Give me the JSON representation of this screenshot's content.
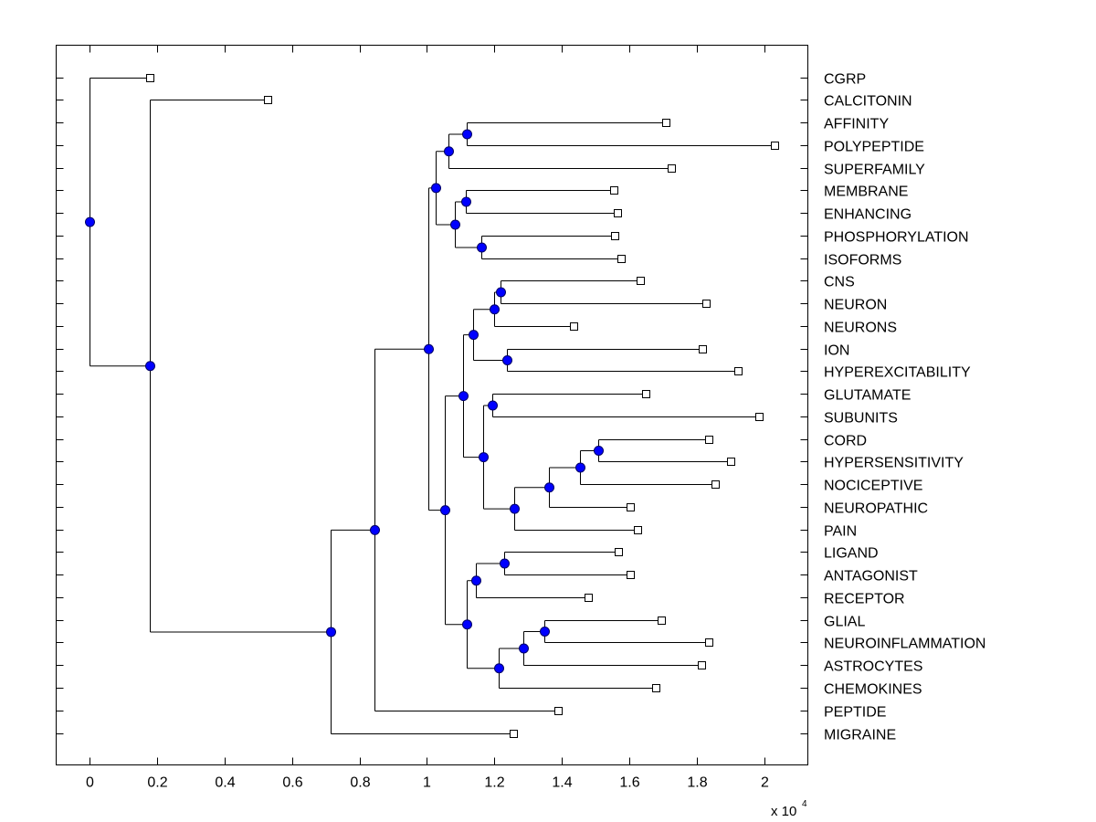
{
  "chart_data": {
    "type": "dendrogram",
    "title": "",
    "xlabel": "",
    "ylabel": "",
    "x_multiplier_label": "x 10",
    "x_multiplier_exponent": "4",
    "xlim": [
      -0.1,
      2.13
    ],
    "xticks": [
      0,
      0.2,
      0.4,
      0.6,
      0.8,
      1,
      1.2,
      1.4,
      1.6,
      1.8,
      2
    ],
    "xtick_labels": [
      "0",
      "0.2",
      "0.4",
      "0.6",
      "0.8",
      "1",
      "1.2",
      "1.4",
      "1.6",
      "1.8",
      "2"
    ],
    "grid": false,
    "leaf_order": [
      "CGRP",
      "CALCITONIN",
      "AFFINITY",
      "POLYPEPTIDE",
      "SUPERFAMILY",
      "MEMBRANE",
      "ENHANCING",
      "PHOSPHORYLATION",
      "ISOFORMS",
      "CNS",
      "NEURON",
      "NEURONS",
      "ION",
      "HYPEREXCITABILITY",
      "GLUTAMATE",
      "SUBUNITS",
      "CORD",
      "HYPERSENSITIVITY",
      "NOCICEPTIVE",
      "NEUROPATHIC",
      "PAIN",
      "LIGAND",
      "ANTAGONIST",
      "RECEPTOR",
      "GLIAL",
      "NEUROINFLAMMATION",
      "ASTROCYTES",
      "CHEMOKINES",
      "PEPTIDE",
      "MIGRAINE"
    ],
    "leaf_values": {
      "CGRP": 0.179,
      "CALCITONIN": 0.528,
      "AFFINITY": 1.71,
      "POLYPEPTIDE": 2.03,
      "SUPERFAMILY": 1.726,
      "MEMBRANE": 1.553,
      "ENHANCING": 1.566,
      "PHOSPHORYLATION": 1.556,
      "ISOFORMS": 1.575,
      "CNS": 1.634,
      "NEURON": 1.829,
      "NEURONS": 1.434,
      "ION": 1.818,
      "HYPEREXCITABILITY": 1.924,
      "GLUTAMATE": 1.648,
      "SUBUNITS": 1.986,
      "CORD": 1.837,
      "HYPERSENSITIVITY": 1.9,
      "NOCICEPTIVE": 1.854,
      "NEUROPATHIC": 1.602,
      "PAIN": 1.626,
      "LIGAND": 1.569,
      "ANTAGONIST": 1.604,
      "RECEPTOR": 1.477,
      "GLIAL": 1.696,
      "NEUROINFLAMMATION": 1.837,
      "ASTROCYTES": 1.813,
      "CHEMOKINES": 1.68,
      "PEPTIDE": 1.39,
      "MIGRAINE": 1.257
    },
    "tree": {
      "value": 0.0,
      "children": [
        "CGRP",
        {
          "value": 0.179,
          "children": [
            "CALCITONIN",
            {
              "value": 0.715,
              "children": [
                {
                  "value": 0.843,
                  "children": [
                    {
                      "value": 1.005,
                      "children": [
                        {
                          "value": 1.027,
                          "children": [
                            {
                              "value": 1.065,
                              "children": [
                                {
                                  "value": 1.119,
                                  "children": [
                                    "AFFINITY",
                                    "POLYPEPTIDE"
                                  ]
                                },
                                "SUPERFAMILY"
                              ]
                            },
                            {
                              "value": 1.084,
                              "children": [
                                {
                                  "value": 1.114,
                                  "children": [
                                    "MEMBRANE",
                                    "ENHANCING"
                                  ]
                                },
                                {
                                  "value": 1.16,
                                  "children": [
                                    "PHOSPHORYLATION",
                                    "ISOFORMS"
                                  ]
                                }
                              ]
                            }
                          ]
                        },
                        {
                          "value": 1.054,
                          "children": [
                            {
                              "value": 1.106,
                              "children": [
                                {
                                  "value": 1.138,
                                  "children": [
                                    {
                                      "value": 1.198,
                                      "children": [
                                        {
                                          "value": 1.217,
                                          "children": [
                                            "CNS",
                                            "NEURON"
                                          ]
                                        },
                                        "NEURONS"
                                      ]
                                    },
                                    {
                                      "value": 1.238,
                                      "children": [
                                        "ION",
                                        "HYPEREXCITABILITY"
                                      ]
                                    }
                                  ]
                                },
                                {
                                  "value": 1.168,
                                  "children": [
                                    {
                                      "value": 1.195,
                                      "children": [
                                        "GLUTAMATE",
                                        "SUBUNITS"
                                      ]
                                    },
                                    {
                                      "value": 1.26,
                                      "children": [
                                        {
                                          "value": 1.363,
                                          "children": [
                                            {
                                              "value": 1.453,
                                              "children": [
                                                {
                                                  "value": 1.507,
                                                  "children": [
                                                    "CORD",
                                                    "HYPERSENSITIVITY"
                                                  ]
                                                },
                                                "NOCICEPTIVE"
                                              ]
                                            },
                                            "NEUROPATHIC"
                                          ]
                                        },
                                        "PAIN"
                                      ]
                                    }
                                  ]
                                }
                              ]
                            },
                            {
                              "value": 1.117,
                              "children": [
                                {
                                  "value": 1.146,
                                  "children": [
                                    {
                                      "value": 1.23,
                                      "children": [
                                        "LIGAND",
                                        "ANTAGONIST"
                                      ]
                                    },
                                    "RECEPTOR"
                                  ]
                                },
                                {
                                  "value": 1.214,
                                  "children": [
                                    {
                                      "value": 1.287,
                                      "children": [
                                        {
                                          "value": 1.347,
                                          "children": [
                                            "GLIAL",
                                            "NEUROINFLAMMATION"
                                          ]
                                        },
                                        "ASTROCYTES"
                                      ]
                                    },
                                    "CHEMOKINES"
                                  ]
                                }
                              ]
                            }
                          ]
                        }
                      ]
                    },
                    "PEPTIDE"
                  ]
                },
                "MIGRAINE"
              ]
            }
          ]
        }
      ]
    },
    "colors": {
      "internal_node_fill": "#0000ff",
      "internal_node_stroke": "#000066",
      "leaf_marker_fill": "#ffffff",
      "line": "#000000"
    }
  }
}
